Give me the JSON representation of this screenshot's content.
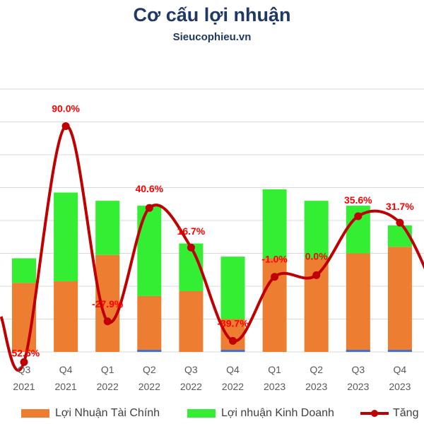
{
  "header": {
    "title": "Cơ cấu lợi nhuận",
    "subtitle": "Sieucophieu.vn"
  },
  "colors": {
    "financial": "#ed7d31",
    "business": "#33ee33",
    "other": "#4472c4",
    "growth": "#c00000",
    "label": "#ff0000",
    "grid": "#d9d9d9",
    "title": "#1f3864"
  },
  "legend": {
    "financial": "Lợi Nhuận Tài Chính",
    "business": "Lợi nhuận Kinh Doanh",
    "growth": "Tăng"
  },
  "chart_data": {
    "type": "bar",
    "stacked": true,
    "grid": true,
    "legend_position": "bottom",
    "categories": [
      [
        "Q3",
        "2021"
      ],
      [
        "Q4",
        "2021"
      ],
      [
        "Q1",
        "2022"
      ],
      [
        "Q2",
        "2022"
      ],
      [
        "Q3",
        "2022"
      ],
      [
        "Q4",
        "2022"
      ],
      [
        "Q1",
        "2023"
      ],
      [
        "Q2",
        "2023"
      ],
      [
        "Q3",
        "2023"
      ],
      [
        "Q4",
        "2023"
      ]
    ],
    "ylim": [
      0,
      8
    ],
    "series": [
      {
        "name": "Lợi Nhuận Tài Chính",
        "key": "financial",
        "values": [
          2.1,
          2.15,
          2.95,
          1.7,
          1.85,
          1.0,
          2.85,
          2.85,
          3.0,
          3.2
        ]
      },
      {
        "name": "Lợi nhuận Kinh Doanh",
        "key": "business",
        "values": [
          0.75,
          2.7,
          1.65,
          2.75,
          1.45,
          1.9,
          2.1,
          1.75,
          1.45,
          0.65
        ]
      }
    ],
    "other_values": [
      0,
      0,
      0,
      0.05,
      0,
      0.08,
      0,
      0,
      0.02,
      0.05
    ],
    "line_series": {
      "name": "Tăng",
      "values": [
        -52.5,
        90.0,
        -27.9,
        40.6,
        16.7,
        -39.7,
        -1.0,
        0.0,
        35.6,
        31.7
      ],
      "labels": [
        "-52.5%",
        "90.0%",
        "-27.9%",
        "40.6%",
        "16.7%",
        "-39.7%",
        "-1.0%",
        "0.0%",
        "35.6%",
        "31.7%"
      ],
      "ylim": [
        -60,
        100
      ]
    }
  }
}
